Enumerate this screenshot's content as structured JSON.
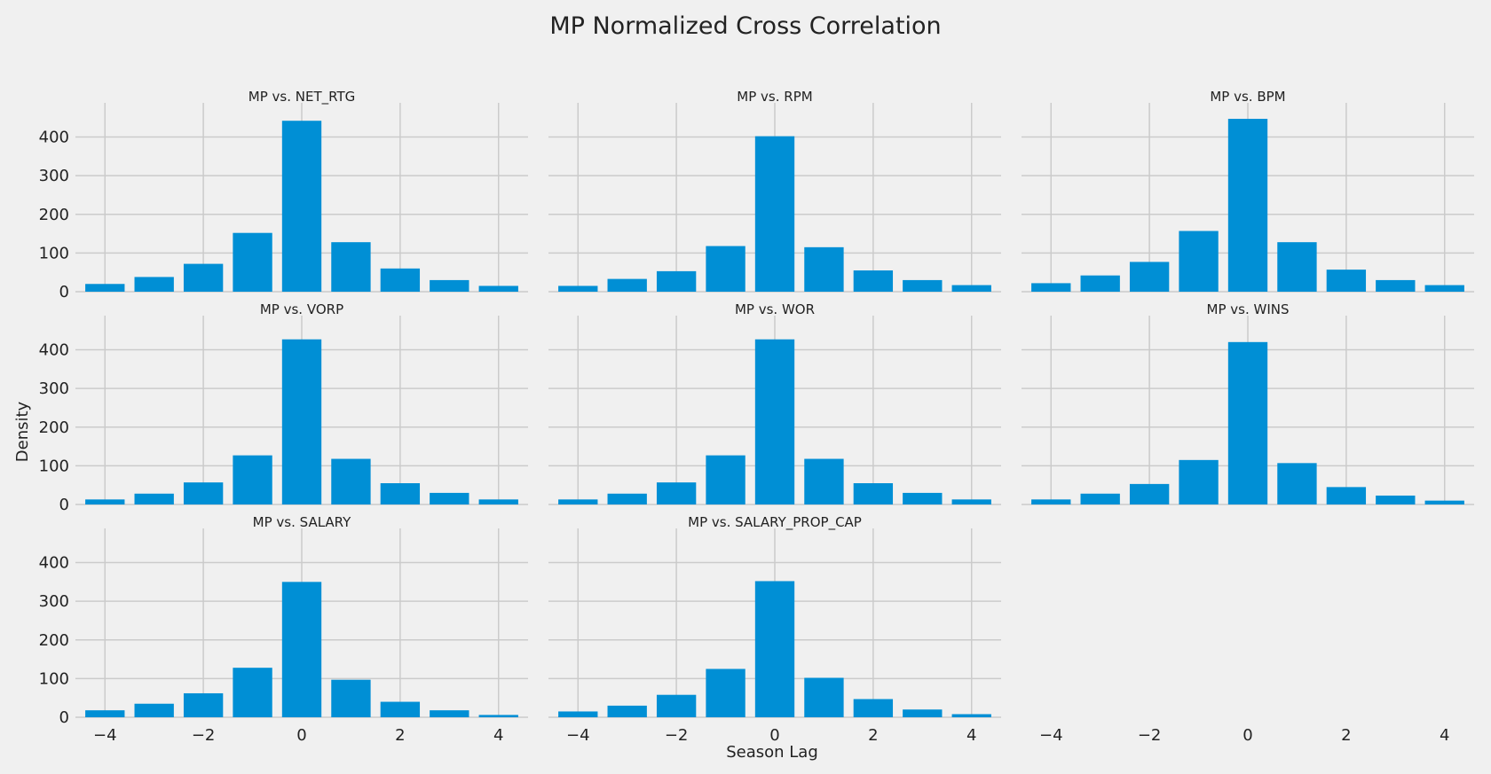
{
  "chart_data": {
    "type": "bar",
    "title": "MP Normalized Cross Correlation",
    "xlabel": "Season Lag",
    "ylabel": "Density",
    "x": [
      -4,
      -3,
      -2,
      -1,
      0,
      1,
      2,
      3,
      4
    ],
    "xticks": [
      -4,
      -2,
      0,
      2,
      4
    ],
    "xlim": [
      -4.6,
      4.6
    ],
    "ylim": [
      0,
      470
    ],
    "yticks": [
      0,
      100,
      200,
      300,
      400
    ],
    "grid": true,
    "bar_color": "#008fd5",
    "background_color": "#f0f0f0",
    "grid_color": "#cbcbcb",
    "panels": [
      {
        "title": "MP vs. NET_RTG",
        "values": [
          20,
          38,
          72,
          152,
          442,
          128,
          60,
          30,
          15
        ]
      },
      {
        "title": "MP vs. RPM",
        "values": [
          15,
          33,
          53,
          118,
          402,
          115,
          55,
          30,
          17
        ]
      },
      {
        "title": "MP vs. BPM",
        "values": [
          22,
          42,
          77,
          157,
          447,
          128,
          57,
          30,
          17
        ]
      },
      {
        "title": "MP vs. VORP",
        "values": [
          13,
          28,
          57,
          127,
          427,
          118,
          55,
          30,
          13
        ]
      },
      {
        "title": "MP vs. WOR",
        "values": [
          13,
          28,
          57,
          127,
          427,
          118,
          55,
          30,
          13
        ]
      },
      {
        "title": "MP vs. WINS",
        "values": [
          13,
          28,
          53,
          115,
          420,
          107,
          45,
          23,
          10
        ]
      },
      {
        "title": "MP vs. SALARY",
        "values": [
          18,
          35,
          62,
          128,
          350,
          97,
          40,
          18,
          6
        ]
      },
      {
        "title": "MP vs. SALARY_PROP_CAP",
        "values": [
          15,
          30,
          58,
          125,
          352,
          102,
          47,
          20,
          8
        ]
      },
      {
        "title": "",
        "values": []
      }
    ]
  }
}
